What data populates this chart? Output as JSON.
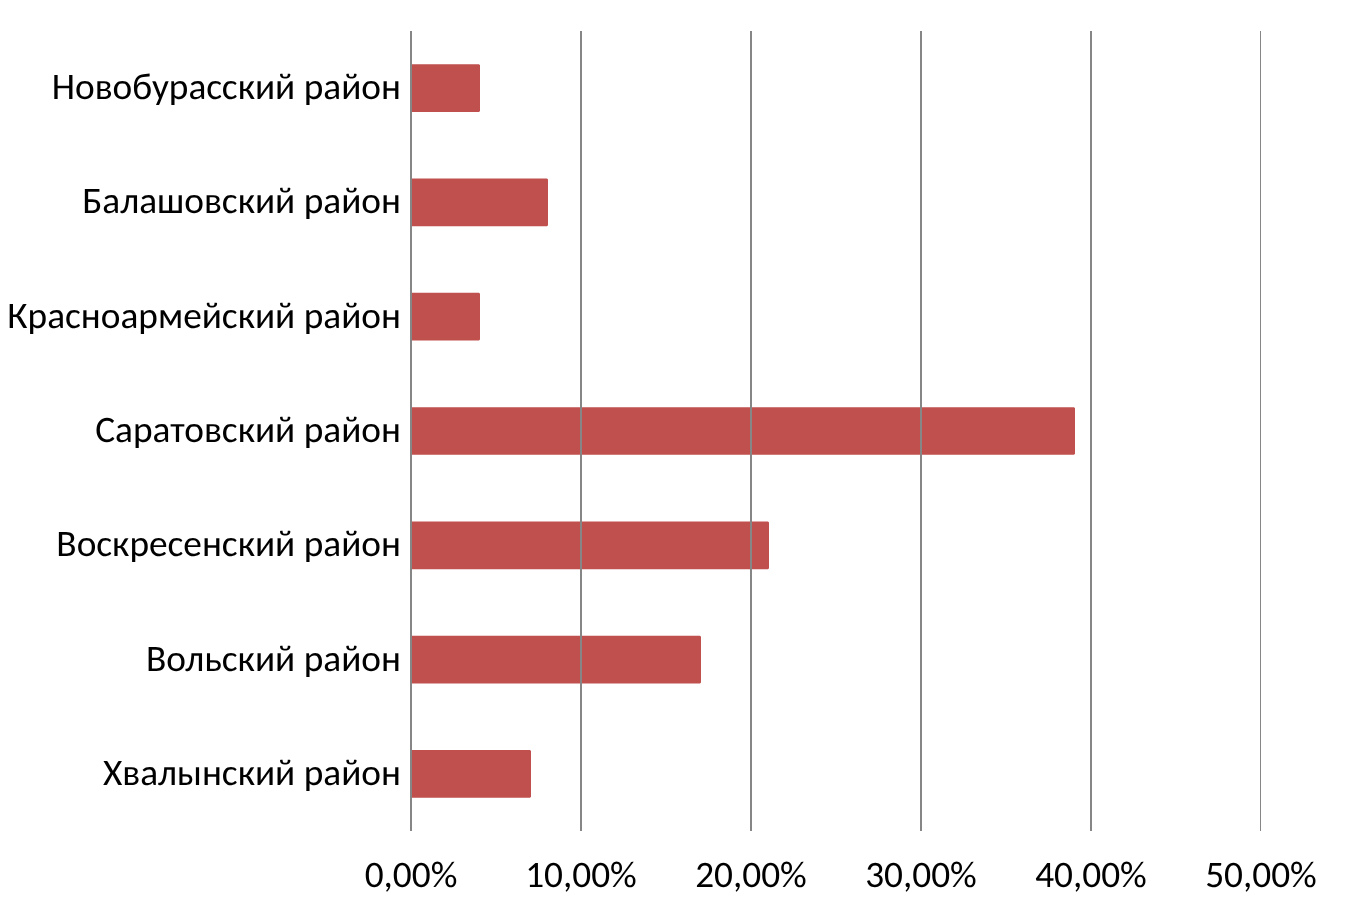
{
  "chart_data": {
    "type": "bar",
    "orientation": "horizontal",
    "categories": [
      "Новобурасский район",
      "Балашовский район",
      "Красноармейский район",
      "Саратовский район",
      "Воскресенский район",
      "Вольский район",
      "Хвалынский район"
    ],
    "values": [
      0.04,
      0.08,
      0.04,
      0.39,
      0.21,
      0.17,
      0.07
    ],
    "color": "#c0504d",
    "xlim": [
      0,
      0.5
    ],
    "xticks": [
      {
        "value": 0,
        "label": "0,00%"
      },
      {
        "value": 0.1,
        "label": "10,00%"
      },
      {
        "value": 0.2,
        "label": "20,00%"
      },
      {
        "value": 0.3,
        "label": "30,00%"
      },
      {
        "value": 0.4,
        "label": "40,00%"
      },
      {
        "value": 0.5,
        "label": "50,00%"
      }
    ],
    "grid": "x"
  }
}
